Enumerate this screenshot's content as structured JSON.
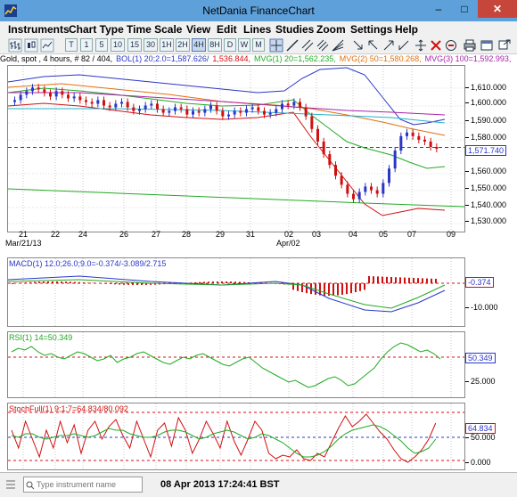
{
  "window": {
    "title": "NetDania FinanceChart",
    "minimize": "–",
    "maximize": "□",
    "close": "✕"
  },
  "menu": [
    "Instruments",
    "Chart Type",
    "Time Scale",
    "View",
    "Edit",
    "Lines",
    "Studies",
    "Zoom",
    "Settings",
    "Help"
  ],
  "toolbar": {
    "intervals": [
      "T",
      "1",
      "5",
      "10",
      "15",
      "30",
      "1H",
      "2H",
      "4H",
      "8H",
      "D",
      "W",
      "M"
    ],
    "active_interval": "4H",
    "icons": [
      "bar-chart-icon",
      "candle-chart-icon",
      "line-chart-icon",
      "crosshair-icon",
      "draw-line-icon",
      "parallel-lines-icon",
      "fibonacci-icon",
      "delete-icon",
      "zoom-out-icon",
      "print-icon",
      "window-icon"
    ]
  },
  "info": {
    "instrument": "Gold, spot , 4 hours, # 82 / 404,",
    "bol": "BOL(1) 20;2.0=1,587.626/",
    "bol2": "1,536.844,",
    "mvg1": "MVG(1) 20=1,562.235,",
    "mvg2": "MVG(2) 50=1,580.268,",
    "mvg3": "MVG(3) 100=1,592.993,",
    "colors": {
      "bol": "#2a36c8",
      "bol2": "#d01010",
      "mvg1": "#22aa22",
      "mvg2": "#e07010",
      "mvg3": "#aa22aa"
    }
  },
  "price": {
    "ticks": [
      "1,610.000",
      "1,600.000",
      "1,590.000",
      "1,580.000",
      "1,570.000",
      "1,560.000",
      "1,550.000",
      "1,540.000",
      "1,530.000"
    ],
    "current": "1,571.740",
    "min": 1525,
    "max": 1617
  },
  "xaxis": {
    "labels": [
      "21",
      "22",
      "24",
      "26",
      "27",
      "28",
      "29",
      "31",
      "02",
      "03",
      "04",
      "05",
      "07",
      "09"
    ],
    "month_labels": [
      "Mar/21/13",
      "Apr/02"
    ]
  },
  "macd": {
    "label": "MACD(1) 12.0;26.0;9.0=-0.374/-3.089/2.715",
    "ticks": [
      "-10.000"
    ],
    "current": "-0.374"
  },
  "rsi": {
    "label": "RSI(1) 14=50.349",
    "ticks": [
      "25.000"
    ],
    "current": "50.349"
  },
  "stoch": {
    "label": "StochFull(1) 9;1;7=64.834/80.092",
    "ticks": [
      "50.000",
      "0.000"
    ],
    "current": "64.834"
  },
  "status": {
    "search_placeholder": "Type instrument name",
    "datetime": "08 Apr 2013 17:24:41 BST"
  }
}
